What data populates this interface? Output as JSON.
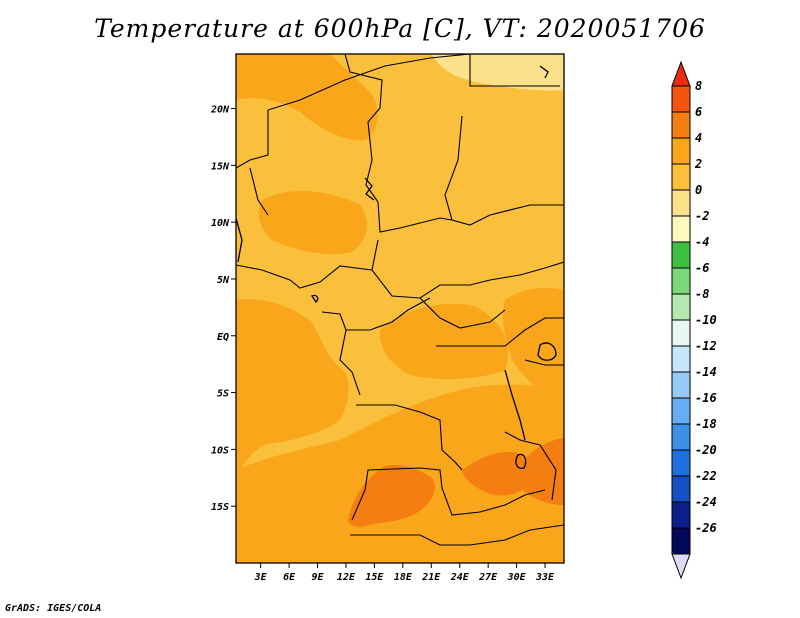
{
  "title": "Temperature at 600hPa [C], VT: 2020051706",
  "credit": "GrADS: IGES/COLA",
  "map": {
    "lat_labels": [
      {
        "lat": 20,
        "label": "20N"
      },
      {
        "lat": 15,
        "label": "15N"
      },
      {
        "lat": 10,
        "label": "10N"
      },
      {
        "lat": 5,
        "label": "5N"
      },
      {
        "lat": 0,
        "label": "EQ"
      },
      {
        "lat": -5,
        "label": "5S"
      },
      {
        "lat": -10,
        "label": "10S"
      },
      {
        "lat": -15,
        "label": "15S"
      }
    ],
    "lon_labels": [
      {
        "lon": 3,
        "label": "3E"
      },
      {
        "lon": 6,
        "label": "6E"
      },
      {
        "lon": 9,
        "label": "9E"
      },
      {
        "lon": 12,
        "label": "12E"
      },
      {
        "lon": 15,
        "label": "15E"
      },
      {
        "lon": 18,
        "label": "18E"
      },
      {
        "lon": 21,
        "label": "21E"
      },
      {
        "lon": 24,
        "label": "24E"
      },
      {
        "lon": 27,
        "label": "27E"
      },
      {
        "lon": 30,
        "label": "30E"
      },
      {
        "lon": 33,
        "label": "33E"
      }
    ],
    "lon_range": [
      0.4,
      35
    ],
    "lat_range": [
      -20,
      24.8
    ],
    "field_colors": {
      "0_to_2": "#fac03c",
      "2_to_4": "#f9a61a",
      "4_to_6": "#f47e11",
      "-2_to_0": "#fae18a"
    }
  },
  "colorbar": {
    "labels": [
      "8",
      "6",
      "4",
      "2",
      "0",
      "-2",
      "-4",
      "-6",
      "-8",
      "-10",
      "-12",
      "-14",
      "-16",
      "-18",
      "-20",
      "-22",
      "-24",
      "-26"
    ],
    "colors": [
      "#e92d11",
      "#f3540f",
      "#f47e11",
      "#f9a61a",
      "#fac03c",
      "#fae18a",
      "#fff8be",
      "#3fbf3f",
      "#7ad77a",
      "#b3eab3",
      "#e6f7f4",
      "#c5e7fb",
      "#96cbf5",
      "#66aef1",
      "#3d8fe8",
      "#1f6fe0",
      "#1450c0",
      "#0a1f8c",
      "#04085a",
      "#dcdcf5"
    ]
  }
}
